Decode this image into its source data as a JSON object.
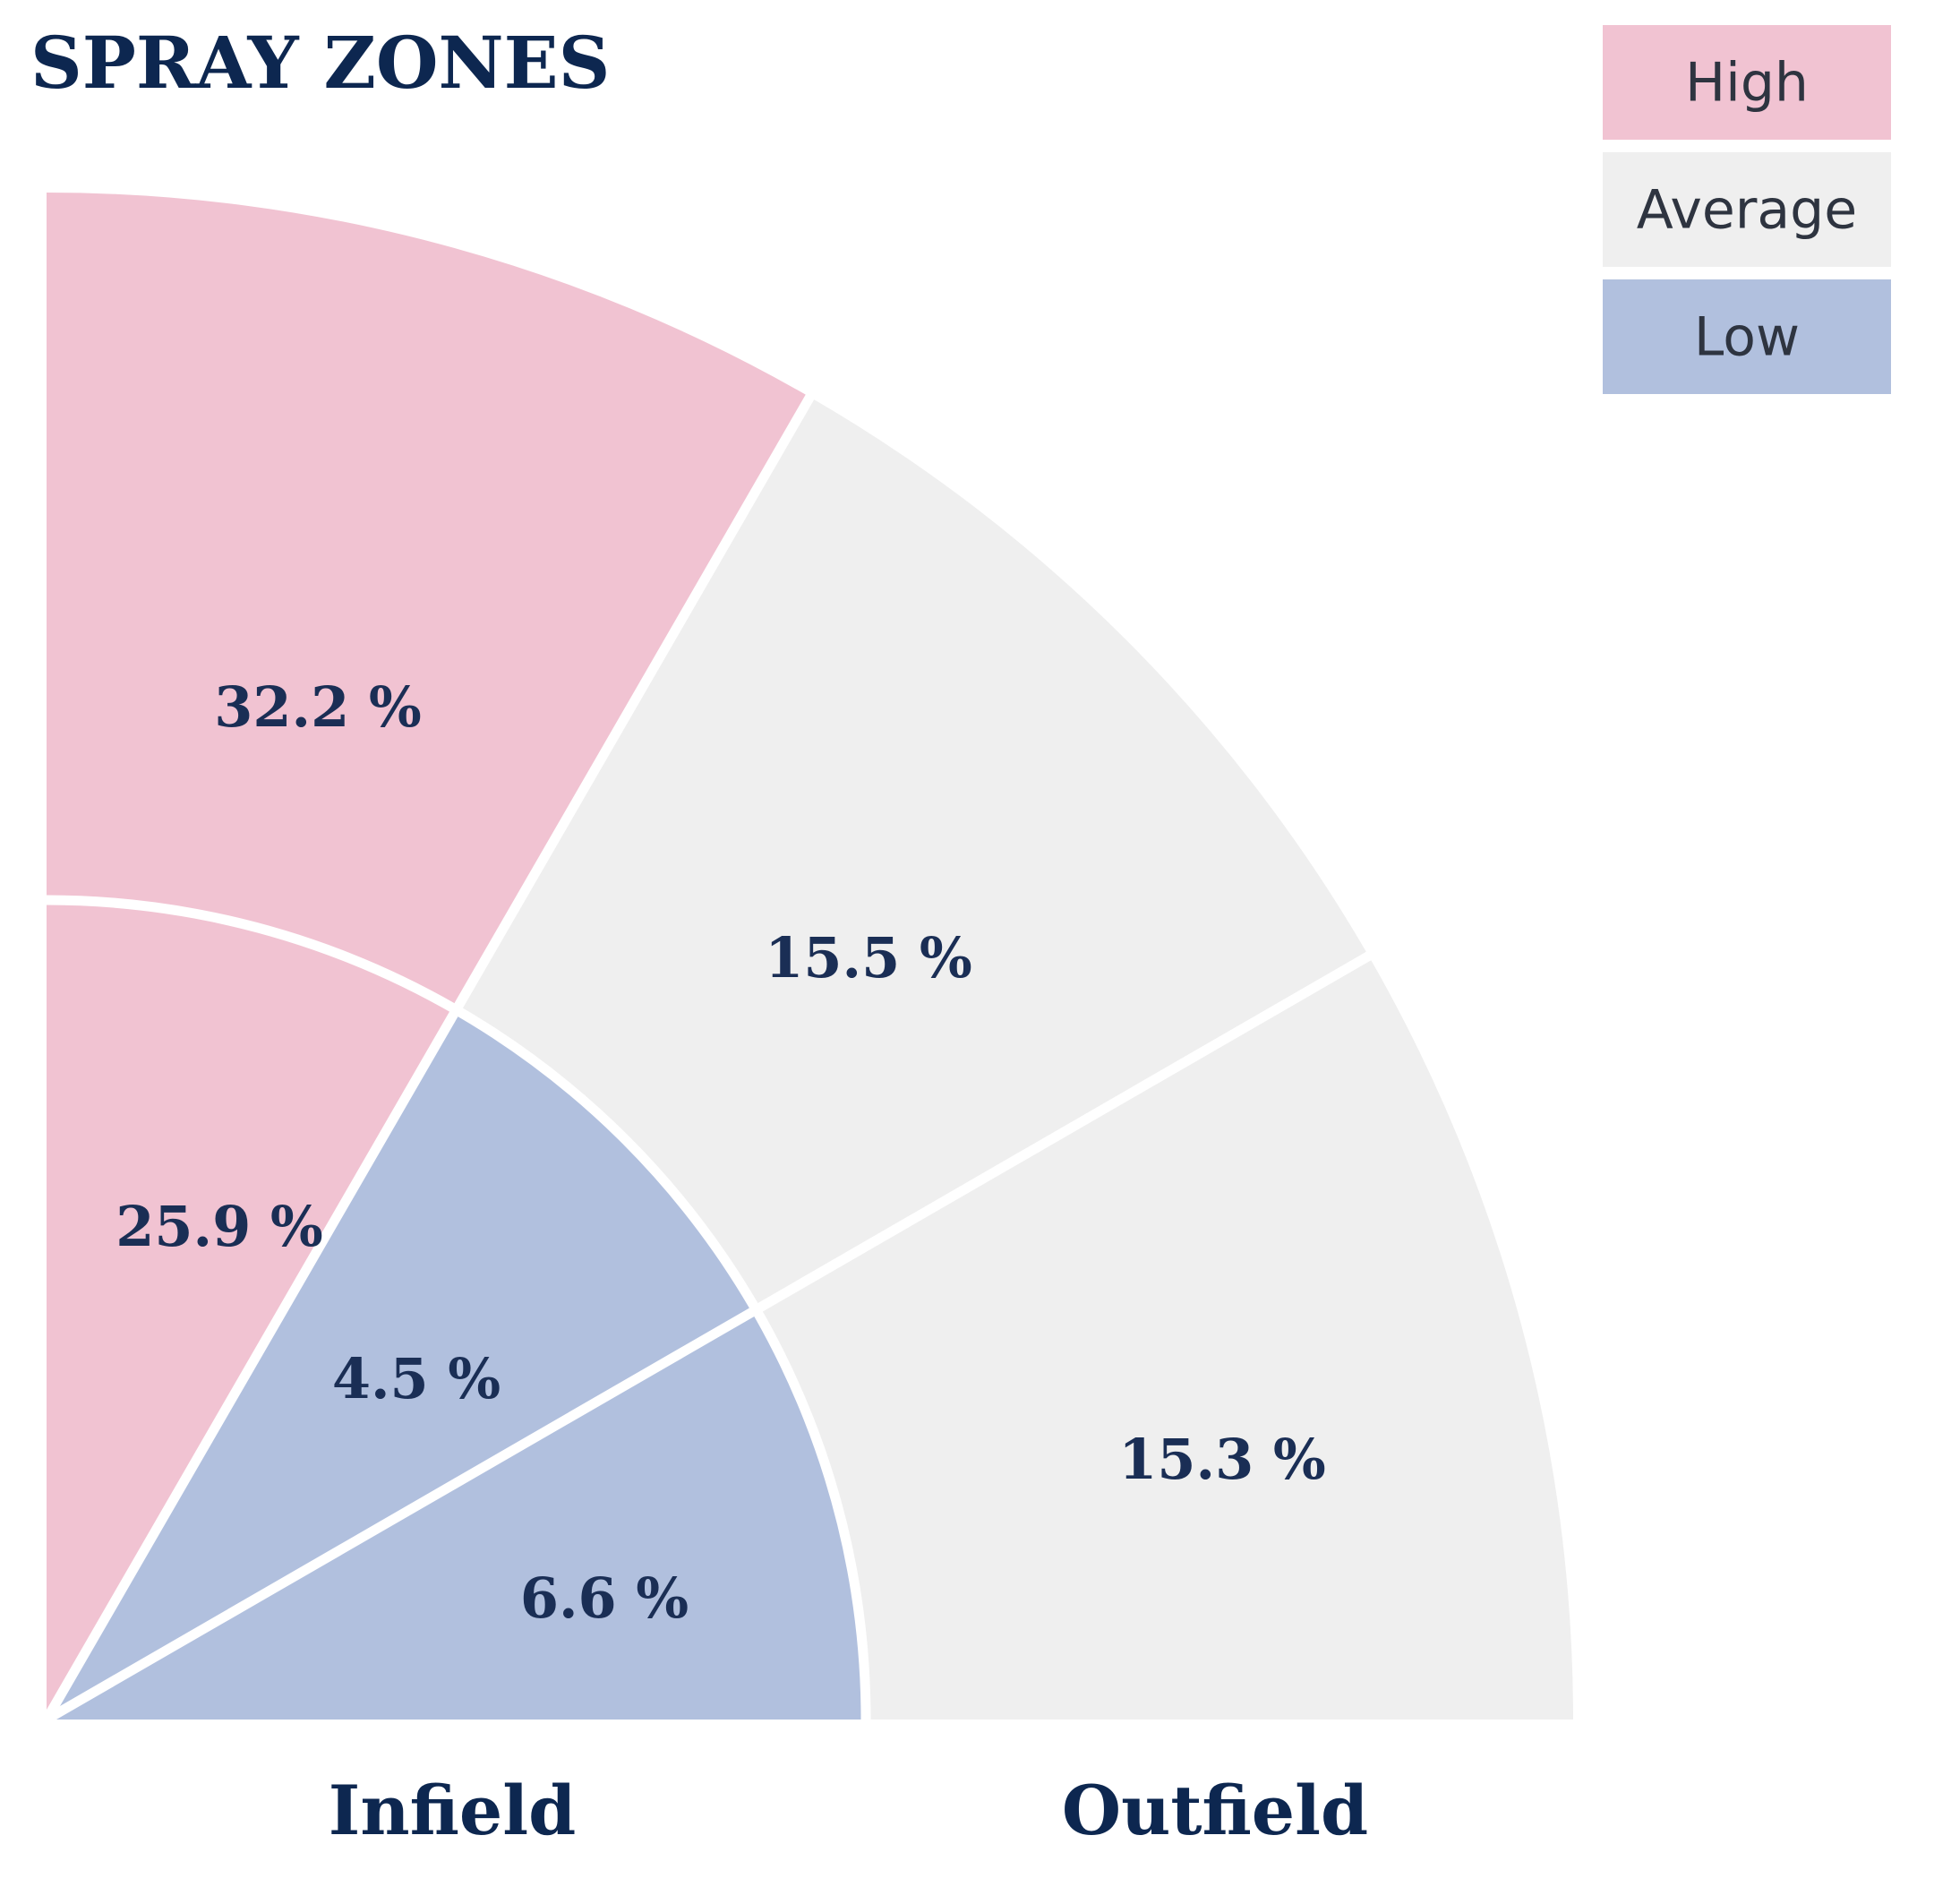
{
  "chart_data": {
    "type": "spray-chart",
    "title": "SPRAY ZONES",
    "levels": {
      "High": "#f1c3d2",
      "Average": "#efefef",
      "Low": "#b1c0de"
    },
    "legend": {
      "placement": "top-right",
      "items": [
        {
          "label": "High",
          "color": "#f1c3d2"
        },
        {
          "label": "Average",
          "color": "#efefef"
        },
        {
          "label": "Low",
          "color": "#b1c0de"
        }
      ]
    },
    "sections": [
      {
        "name": "Infield",
        "label": "Infield"
      },
      {
        "name": "Outfield",
        "label": "Outfield"
      }
    ],
    "zones": [
      {
        "section": "Outfield",
        "direction": "left",
        "value": 32.2,
        "label": "32.2 %",
        "level": "High"
      },
      {
        "section": "Outfield",
        "direction": "center",
        "value": 15.5,
        "label": "15.5 %",
        "level": "Average"
      },
      {
        "section": "Outfield",
        "direction": "right",
        "value": 15.3,
        "label": "15.3 %",
        "level": "Average"
      },
      {
        "section": "Infield",
        "direction": "left",
        "value": 25.9,
        "label": "25.9 %",
        "level": "High"
      },
      {
        "section": "Infield",
        "direction": "center",
        "value": 4.5,
        "label": "4.5 %",
        "level": "Low"
      },
      {
        "section": "Infield",
        "direction": "right",
        "value": 6.6,
        "label": "6.6 %",
        "level": "Low"
      }
    ]
  }
}
